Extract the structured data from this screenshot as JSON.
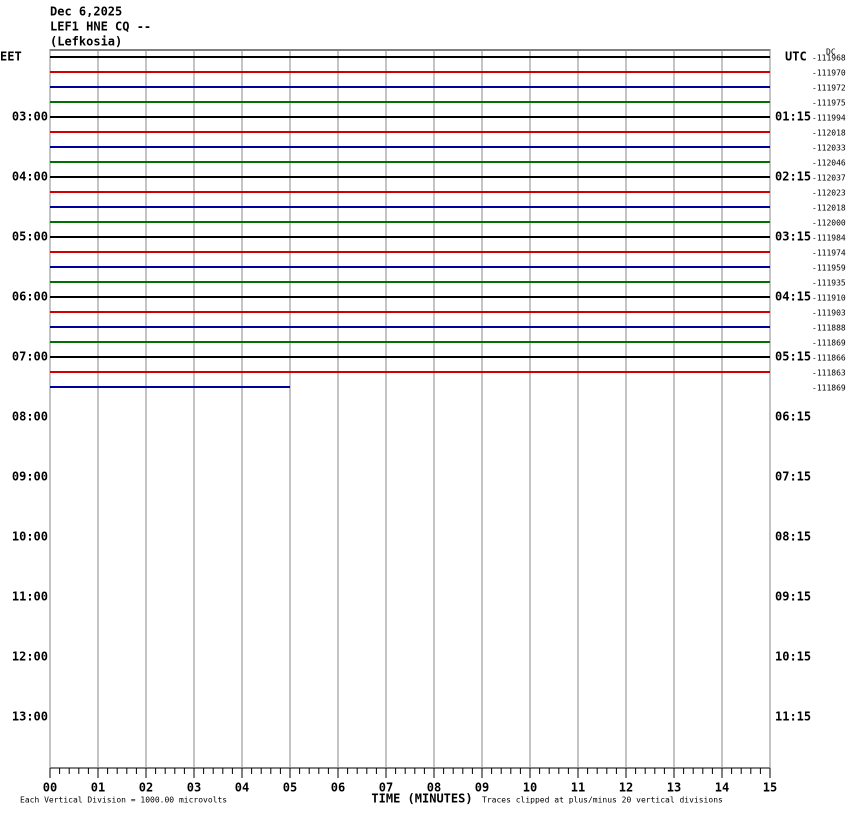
{
  "chart_data": {
    "type": "helicorder",
    "title_lines": [
      "Dec 6,2025",
      "LEF1 HNE CQ --",
      "(Lefkosia)"
    ],
    "left_zone": "EET",
    "right_zone": "UTC",
    "dc_label": "DC",
    "left_times": [
      "03:00",
      "04:00",
      "05:00",
      "06:00",
      "07:00",
      "08:00",
      "09:00",
      "10:00",
      "11:00",
      "12:00",
      "13:00"
    ],
    "right_times": [
      "01:15",
      "02:15",
      "03:15",
      "04:15",
      "05:15",
      "06:15",
      "07:15",
      "08:15",
      "09:15",
      "10:15",
      "11:15"
    ],
    "xlim": [
      0,
      15
    ],
    "xticks": [
      {
        "value": 0,
        "label": "00"
      },
      {
        "value": 1,
        "label": "01"
      },
      {
        "value": 2,
        "label": "02"
      },
      {
        "value": 3,
        "label": "03"
      },
      {
        "value": 4,
        "label": "04"
      },
      {
        "value": 5,
        "label": "05"
      },
      {
        "value": 6,
        "label": "06"
      },
      {
        "value": 7,
        "label": "07"
      },
      {
        "value": 8,
        "label": "08"
      },
      {
        "value": 9,
        "label": "09"
      },
      {
        "value": 10,
        "label": "10"
      },
      {
        "value": 11,
        "label": "11"
      },
      {
        "value": 12,
        "label": "12"
      },
      {
        "value": 13,
        "label": "13"
      },
      {
        "value": 14,
        "label": "14"
      },
      {
        "value": 15,
        "label": "15"
      }
    ],
    "xlabel": "TIME (MINUTES)",
    "scale_note": "Each Vertical Division = 1000.00 microvolts",
    "clip_note": "Traces clipped at plus/minus 20 vertical divisions",
    "colors": [
      "#000000",
      "#d00000",
      "#0000a0",
      "#007000"
    ],
    "traces": [
      {
        "dc": -111968,
        "end": 15
      },
      {
        "dc": -111970,
        "end": 15
      },
      {
        "dc": -111972,
        "end": 15
      },
      {
        "dc": -111975,
        "end": 15
      },
      {
        "dc": -111994,
        "end": 15
      },
      {
        "dc": -112018,
        "end": 15
      },
      {
        "dc": -112033,
        "end": 15
      },
      {
        "dc": -112046,
        "end": 15
      },
      {
        "dc": -112037,
        "end": 15
      },
      {
        "dc": -112023,
        "end": 15
      },
      {
        "dc": -112018,
        "end": 15
      },
      {
        "dc": -112000,
        "end": 15
      },
      {
        "dc": -111984,
        "end": 15
      },
      {
        "dc": -111974,
        "end": 15
      },
      {
        "dc": -111959,
        "end": 15
      },
      {
        "dc": -111935,
        "end": 15
      },
      {
        "dc": -111910,
        "end": 15
      },
      {
        "dc": -111903,
        "end": 15
      },
      {
        "dc": -111888,
        "end": 15
      },
      {
        "dc": -111869,
        "end": 15
      },
      {
        "dc": -111866,
        "end": 15
      },
      {
        "dc": -111863,
        "end": 15
      },
      {
        "dc": -111869,
        "end": 5
      }
    ]
  }
}
